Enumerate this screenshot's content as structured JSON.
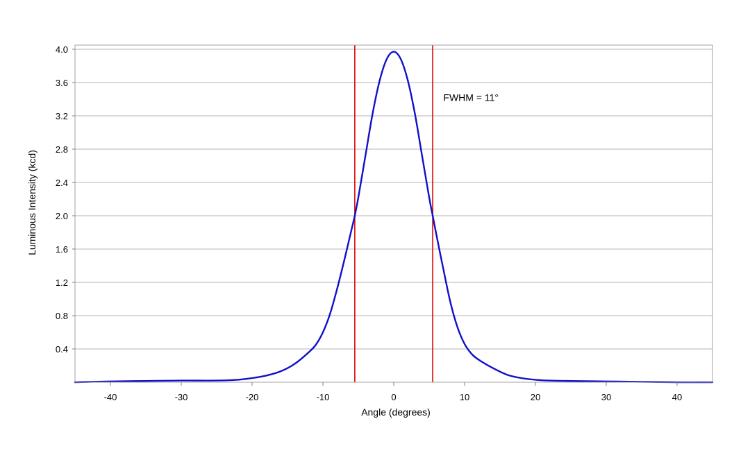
{
  "chart_data": {
    "type": "line",
    "xlabel": "Angle (degrees)",
    "ylabel": "Luminous Intensity (kcd)",
    "xlim": [
      -45,
      45
    ],
    "ylim": [
      0,
      4.0
    ],
    "x_ticks": [
      -40,
      -30,
      -20,
      -10,
      0,
      10,
      20,
      30,
      40
    ],
    "x_tick_labels": [
      "-40",
      "-30",
      "-20",
      "-10",
      "0",
      "10",
      "20",
      "30",
      "40"
    ],
    "y_ticks": [
      0.4,
      0.8,
      1.2,
      1.6,
      2.0,
      2.4,
      2.8,
      3.2,
      3.6,
      4.0
    ],
    "y_tick_labels": [
      "0.4",
      "0.8",
      "1.2",
      "1.6",
      "2.0",
      "2.4",
      "2.8",
      "3.2",
      "3.6",
      "4.0"
    ],
    "grid": {
      "horizontal": true,
      "vertical": false
    },
    "series": [
      {
        "color": "#1010c8",
        "x": [
          -45,
          -40,
          -35,
          -30,
          -25,
          -22,
          -20,
          -18,
          -16,
          -14,
          -12,
          -11,
          -10,
          -9,
          -8,
          -7,
          -6,
          -5.5,
          -5,
          -4,
          -3,
          -2,
          -1,
          0,
          1,
          2,
          3,
          4,
          5,
          5.5,
          6,
          7,
          8,
          9,
          10,
          11,
          12,
          14,
          16,
          18,
          20,
          22,
          25,
          30,
          35,
          40,
          45
        ],
        "y": [
          0.0,
          0.01,
          0.015,
          0.02,
          0.02,
          0.03,
          0.05,
          0.08,
          0.13,
          0.22,
          0.36,
          0.45,
          0.6,
          0.82,
          1.12,
          1.46,
          1.82,
          2.0,
          2.22,
          2.72,
          3.22,
          3.62,
          3.88,
          3.97,
          3.88,
          3.62,
          3.22,
          2.72,
          2.22,
          2.0,
          1.78,
          1.36,
          0.96,
          0.66,
          0.46,
          0.34,
          0.27,
          0.17,
          0.09,
          0.05,
          0.03,
          0.02,
          0.015,
          0.01,
          0.005,
          0.0,
          0.0
        ]
      }
    ],
    "vertical_lines": [
      {
        "x": -5.5,
        "color": "#dd0000"
      },
      {
        "x": 5.5,
        "color": "#dd0000"
      }
    ],
    "annotations": [
      {
        "text": "FWHM = 11°",
        "x": 7.0,
        "y": 3.38
      }
    ]
  }
}
